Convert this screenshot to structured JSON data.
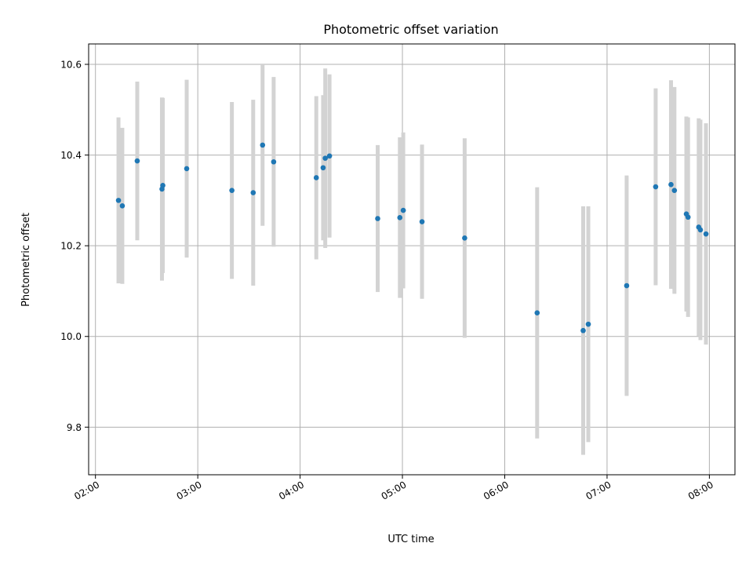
{
  "chart_data": {
    "type": "scatter",
    "title": "Photometric offset variation",
    "xlabel": "UTC time",
    "ylabel": "Photometric offset",
    "xlim": [
      "01:56",
      "08:15"
    ],
    "ylim": [
      9.695,
      10.645
    ],
    "grid": true,
    "x_ticks": [
      "02:00",
      "03:00",
      "04:00",
      "05:00",
      "06:00",
      "07:00",
      "08:00"
    ],
    "y_ticks": [
      9.8,
      10.0,
      10.2,
      10.4,
      10.6
    ],
    "y_tick_labels": [
      "9.8",
      "10.0",
      "10.2",
      "10.4",
      "10.6"
    ],
    "colors": {
      "point": "#1f77b4",
      "errorbar": "#d3d3d3",
      "grid": "#b0b0b0"
    },
    "points": [
      {
        "t": "02:13:30",
        "y": 10.3,
        "err": 0.183
      },
      {
        "t": "02:15:45",
        "y": 10.288,
        "err": 0.172
      },
      {
        "t": "02:24:30",
        "y": 10.387,
        "err": 0.175
      },
      {
        "t": "02:39:00",
        "y": 10.325,
        "err": 0.202
      },
      {
        "t": "02:39:30",
        "y": 10.333,
        "err": 0.193
      },
      {
        "t": "02:53:30",
        "y": 10.37,
        "err": 0.196
      },
      {
        "t": "03:20:00",
        "y": 10.322,
        "err": 0.195
      },
      {
        "t": "03:32:30",
        "y": 10.317,
        "err": 0.205
      },
      {
        "t": "03:38:00",
        "y": 10.422,
        "err": 0.178
      },
      {
        "t": "03:44:30",
        "y": 10.385,
        "err": 0.187
      },
      {
        "t": "04:09:30",
        "y": 10.35,
        "err": 0.18
      },
      {
        "t": "04:13:30",
        "y": 10.372,
        "err": 0.16
      },
      {
        "t": "04:14:45",
        "y": 10.393,
        "err": 0.198
      },
      {
        "t": "04:17:15",
        "y": 10.398,
        "err": 0.18
      },
      {
        "t": "04:45:30",
        "y": 10.26,
        "err": 0.162
      },
      {
        "t": "04:58:30",
        "y": 10.262,
        "err": 0.177
      },
      {
        "t": "05:00:30",
        "y": 10.278,
        "err": 0.172
      },
      {
        "t": "05:11:30",
        "y": 10.253,
        "err": 0.17
      },
      {
        "t": "05:36:30",
        "y": 10.217,
        "err": 0.22
      },
      {
        "t": "06:19:00",
        "y": 10.052,
        "err": 0.277
      },
      {
        "t": "06:46:00",
        "y": 10.013,
        "err": 0.274
      },
      {
        "t": "06:49:00",
        "y": 10.027,
        "err": 0.26
      },
      {
        "t": "07:11:30",
        "y": 10.112,
        "err": 0.243
      },
      {
        "t": "07:28:30",
        "y": 10.33,
        "err": 0.217
      },
      {
        "t": "07:37:30",
        "y": 10.335,
        "err": 0.23
      },
      {
        "t": "07:39:30",
        "y": 10.322,
        "err": 0.228
      },
      {
        "t": "07:46:30",
        "y": 10.27,
        "err": 0.215
      },
      {
        "t": "07:47:30",
        "y": 10.263,
        "err": 0.22
      },
      {
        "t": "07:53:45",
        "y": 10.241,
        "err": 0.24
      },
      {
        "t": "07:54:45",
        "y": 10.235,
        "err": 0.243
      },
      {
        "t": "07:58:00",
        "y": 10.226,
        "err": 0.244
      }
    ]
  }
}
